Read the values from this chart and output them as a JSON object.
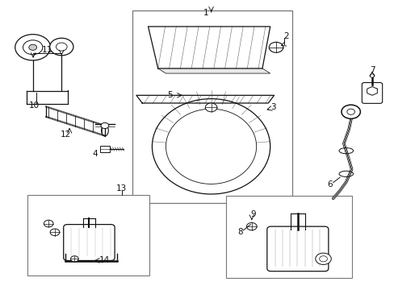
{
  "background_color": "#ffffff",
  "line_color": "#111111",
  "border_color": "#777777",
  "fig_width": 4.89,
  "fig_height": 3.6,
  "dpi": 100
}
